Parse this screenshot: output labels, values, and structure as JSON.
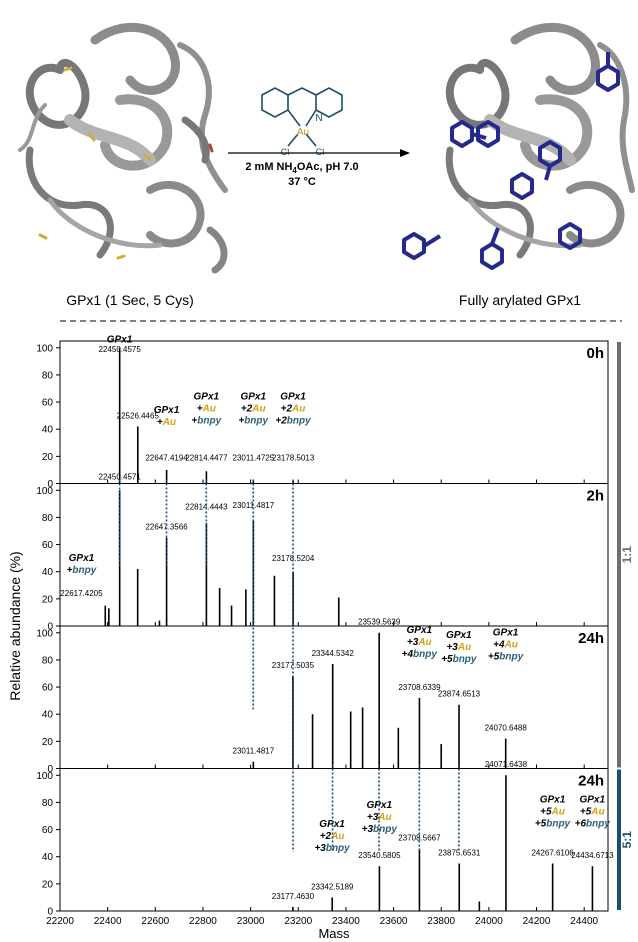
{
  "scheme": {
    "left_caption": "GPx1 (1 Sec, 5 Cys)",
    "right_caption": "Fully arylated GPx1",
    "conditions_line1": "2 mM NH",
    "conditions_sub": "4",
    "conditions_line1b": "OAc, pH 7.0",
    "conditions_line2": "37 °C",
    "reagent_atoms": {
      "au": "Au",
      "n": "N",
      "cl1": "Cl",
      "cl2": "Cl"
    }
  },
  "colors": {
    "protein": "#8f8f8f",
    "aryl": "#232a8c",
    "au_text": "#d4a017",
    "bnpy_text": "#2b5e78",
    "guide": "#1f4e79",
    "bar_ratio_11": "#6e6e6e",
    "bar_ratio_51": "#1c4f6b",
    "reagent": "#1a4e66"
  },
  "chart_data": {
    "type": "bar",
    "xlabel": "Mass",
    "ylabel": "Relative abundance (%)",
    "xlim": [
      22200,
      24500
    ],
    "ylim": [
      0,
      105
    ],
    "xticks": [
      22200,
      22400,
      22600,
      22800,
      23000,
      23200,
      23400,
      23600,
      23800,
      24000,
      24200,
      24400
    ],
    "yticks": [
      0,
      20,
      40,
      60,
      80,
      100
    ],
    "ratio_labels": [
      {
        "label": "1:1",
        "panels": [
          0,
          1,
          2
        ]
      },
      {
        "label": "5:1",
        "panels": [
          3
        ]
      }
    ],
    "panels": [
      {
        "time": "0h",
        "peaks": [
          {
            "x": 22450.4575,
            "y": 100
          },
          {
            "x": 22526.4465,
            "y": 42
          },
          {
            "x": 22647.4194,
            "y": 10
          },
          {
            "x": 22814.4477,
            "y": 9
          },
          {
            "x": 23011.4725,
            "y": 3
          },
          {
            "x": 23178.5013,
            "y": 2
          }
        ],
        "labels": [
          {
            "x": 22450.4575,
            "text": "22450.4575",
            "y": 97
          },
          {
            "x": 22526.4465,
            "text": "22526.4465",
            "y": 48
          },
          {
            "x": 22647.4194,
            "text": "22647.4194",
            "y": 17
          },
          {
            "x": 22814.4477,
            "text": "22814.4477",
            "y": 17
          },
          {
            "x": 23011.4725,
            "text": "23011.4725",
            "y": 17
          },
          {
            "x": 23178.5013,
            "text": "23178.5013",
            "y": 17
          }
        ],
        "species": [
          {
            "x": 22450,
            "y": 104,
            "lines": [
              [
                "GPx1",
                "k"
              ]
            ]
          },
          {
            "x": 22647,
            "y": 52,
            "lines": [
              [
                "GPx1",
                "k"
              ],
              [
                "+",
                "k",
                "Au",
                "a"
              ]
            ]
          },
          {
            "x": 22814,
            "y": 62,
            "lines": [
              [
                "GPx1",
                "k"
              ],
              [
                "+",
                "k",
                "Au",
                "a"
              ],
              [
                "+",
                "k",
                "bnpy",
                "b"
              ]
            ]
          },
          {
            "x": 23011,
            "y": 62,
            "lines": [
              [
                "GPx1",
                "k"
              ],
              [
                "+2",
                "k",
                "Au",
                "a"
              ],
              [
                "+",
                "k",
                "bnpy",
                "b"
              ]
            ]
          },
          {
            "x": 23178,
            "y": 62,
            "lines": [
              [
                "GPx1",
                "k"
              ],
              [
                "+2",
                "k",
                "Au",
                "a"
              ],
              [
                "+2",
                "k",
                "bnpy",
                "b"
              ]
            ]
          }
        ]
      },
      {
        "time": "2h",
        "peaks": [
          {
            "x": 22450.4571,
            "y": 100
          },
          {
            "x": 22526,
            "y": 42
          },
          {
            "x": 22617.4205,
            "y": 4
          },
          {
            "x": 22647.3566,
            "y": 65
          },
          {
            "x": 22814.4443,
            "y": 76
          },
          {
            "x": 22870,
            "y": 28
          },
          {
            "x": 22920,
            "y": 15
          },
          {
            "x": 22980,
            "y": 27
          },
          {
            "x": 23011.4817,
            "y": 77
          },
          {
            "x": 23100,
            "y": 37
          },
          {
            "x": 23178.5204,
            "y": 40
          },
          {
            "x": 23370,
            "y": 21
          },
          {
            "x": 22390,
            "y": 15
          },
          {
            "x": 22405,
            "y": 13
          }
        ],
        "labels": [
          {
            "x": 22450.4571,
            "text": "22450.4571",
            "y": 108
          },
          {
            "x": 22647.3566,
            "text": "22647.3566",
            "y": 71
          },
          {
            "x": 22814.4443,
            "text": "22814.4443",
            "y": 86
          },
          {
            "x": 23011.4817,
            "text": "23011.4817",
            "y": 87
          },
          {
            "x": 23178.5204,
            "text": "23178.5204",
            "y": 48
          }
        ],
        "species": [
          {
            "x": 22290,
            "y": 48,
            "lines": [
              [
                "GPx1",
                "k"
              ],
              [
                "+",
                "k",
                "bnpy",
                "b"
              ]
            ]
          }
        ],
        "extra_label": {
          "text": "22617.4205",
          "x": 22290,
          "y": 22
        }
      },
      {
        "time": "24h",
        "peaks": [
          {
            "x": 23011.4817,
            "y": 5
          },
          {
            "x": 23177.5035,
            "y": 68
          },
          {
            "x": 23260,
            "y": 40
          },
          {
            "x": 23344.5342,
            "y": 77
          },
          {
            "x": 23420,
            "y": 42
          },
          {
            "x": 23470,
            "y": 45
          },
          {
            "x": 23539.5639,
            "y": 100
          },
          {
            "x": 23620,
            "y": 30
          },
          {
            "x": 23708.6339,
            "y": 52
          },
          {
            "x": 23800,
            "y": 18
          },
          {
            "x": 23874.6513,
            "y": 47
          },
          {
            "x": 24070.6488,
            "y": 22
          }
        ],
        "labels": [
          {
            "x": 23011.4817,
            "text": "23011.4817",
            "y": 11
          },
          {
            "x": 23177.5035,
            "text": "23177.5035",
            "y": 74
          },
          {
            "x": 23344.5342,
            "text": "23344.5342",
            "y": 83
          },
          {
            "x": 23539.5639,
            "text": "23539.5639",
            "y": 106
          },
          {
            "x": 23708.6339,
            "text": "23708.6339",
            "y": 58
          },
          {
            "x": 23874.6513,
            "text": "23874.6513",
            "y": 53
          },
          {
            "x": 24070.6488,
            "text": "24070.6488",
            "y": 28
          }
        ],
        "species": [
          {
            "x": 23708,
            "y": 100,
            "lines": [
              [
                "GPx1",
                "k"
              ],
              [
                "+3",
                "k",
                "Au",
                "a"
              ],
              [
                "+4",
                "k",
                "bnpy",
                "b"
              ]
            ]
          },
          {
            "x": 23874,
            "y": 96,
            "lines": [
              [
                "GPx1",
                "k"
              ],
              [
                "+3",
                "k",
                "Au",
                "a"
              ],
              [
                "+5",
                "k",
                "bnpy",
                "b"
              ]
            ]
          },
          {
            "x": 24070,
            "y": 98,
            "lines": [
              [
                "GPx1",
                "k"
              ],
              [
                "+4",
                "k",
                "Au",
                "a"
              ],
              [
                "+5",
                "k",
                "bnpy",
                "b"
              ]
            ]
          }
        ]
      },
      {
        "time": "24h",
        "peaks": [
          {
            "x": 23177.463,
            "y": 3
          },
          {
            "x": 23342.5189,
            "y": 10
          },
          {
            "x": 23540.5805,
            "y": 33
          },
          {
            "x": 23708.5667,
            "y": 46
          },
          {
            "x": 23875.6531,
            "y": 35
          },
          {
            "x": 23960,
            "y": 7
          },
          {
            "x": 24071.6438,
            "y": 100
          },
          {
            "x": 24267.6106,
            "y": 35
          },
          {
            "x": 24434.6713,
            "y": 33
          }
        ],
        "labels": [
          {
            "x": 23177.463,
            "text": "23177.4630",
            "y": 9
          },
          {
            "x": 23342.5189,
            "text": "23342.5189",
            "y": 16
          },
          {
            "x": 23540.5805,
            "text": "23540.5805",
            "y": 39
          },
          {
            "x": 23708.5667,
            "text": "23708.5667",
            "y": 52
          },
          {
            "x": 23875.6531,
            "text": "23875.6531",
            "y": 41
          },
          {
            "x": 24071.6438,
            "text": "24071.6438",
            "y": 106
          },
          {
            "x": 24267.6106,
            "text": "24267.6106",
            "y": 41
          },
          {
            "x": 24434.6713,
            "text": "24434.6713",
            "y": 39
          }
        ],
        "species": [
          {
            "x": 23342,
            "y": 62,
            "lines": [
              [
                "GPx1",
                "k"
              ],
              [
                "+2",
                "k",
                "Au",
                "a"
              ],
              [
                "+3",
                "k",
                "bnpy",
                "b"
              ]
            ]
          },
          {
            "x": 23540,
            "y": 76,
            "lines": [
              [
                "GPx1",
                "k"
              ],
              [
                "+3",
                "k",
                "Au",
                "a"
              ],
              [
                "+3",
                "k",
                "bnpy",
                "b"
              ]
            ]
          },
          {
            "x": 24267,
            "y": 80,
            "lines": [
              [
                "GPx1",
                "k"
              ],
              [
                "+5",
                "k",
                "Au",
                "a"
              ],
              [
                "+5",
                "k",
                "bnpy",
                "b"
              ]
            ]
          },
          {
            "x": 24434,
            "y": 80,
            "lines": [
              [
                "GPx1",
                "k"
              ],
              [
                "+5",
                "k",
                "Au",
                "a"
              ],
              [
                "+6",
                "k",
                "bnpy",
                "b"
              ]
            ]
          }
        ]
      }
    ],
    "guides": [
      {
        "x": 22450,
        "from": 0,
        "to": 1
      },
      {
        "x": 22647,
        "from": 0,
        "to": 1
      },
      {
        "x": 22814,
        "from": 0,
        "to": 1
      },
      {
        "x": 23011,
        "from": 0,
        "to": 2
      },
      {
        "x": 23178,
        "from": 0,
        "to": 3
      },
      {
        "x": 23344,
        "from": 2,
        "to": 3
      },
      {
        "x": 23539,
        "from": 2,
        "to": 3
      },
      {
        "x": 23708,
        "from": 2,
        "to": 3
      },
      {
        "x": 23874,
        "from": 2,
        "to": 3
      }
    ]
  }
}
